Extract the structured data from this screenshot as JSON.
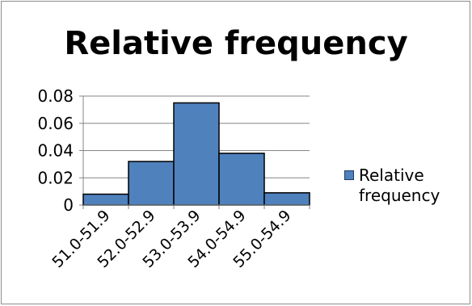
{
  "chart_data": {
    "type": "bar",
    "title": "Relative frequency",
    "categories": [
      "51.0-51.9",
      "52.0-52.9",
      "53.0-53.9",
      "54.0-54.9",
      "55.0-54.9"
    ],
    "series": [
      {
        "name": "Relative frequency",
        "values": [
          0.008,
          0.032,
          0.075,
          0.038,
          0.009
        ]
      }
    ],
    "ylim": [
      0,
      0.08
    ],
    "yticks": [
      "0",
      "0.02",
      "0.04",
      "0.06",
      "0.08"
    ],
    "grid": true,
    "legend_position": "right",
    "colors": {
      "bar": "#4f81bd",
      "bar_edge": "#000000",
      "grid": "#868686"
    }
  }
}
